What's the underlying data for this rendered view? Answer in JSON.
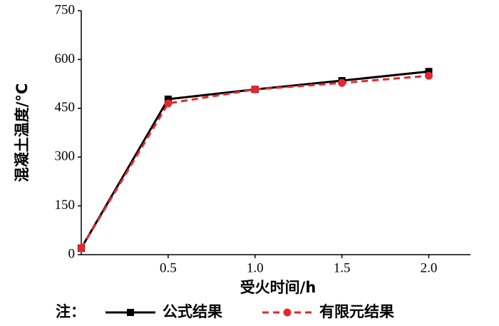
{
  "chart_data": {
    "type": "line",
    "xlabel": "受火时间/h",
    "ylabel": "混凝土温度/°C",
    "note": "注：",
    "x": [
      0,
      0.5,
      1,
      1.5,
      2
    ],
    "series": [
      {
        "name": "公式结果",
        "color": "#000000",
        "marker": "square",
        "dash": false,
        "values": [
          20,
          478,
          508,
          535,
          563
        ]
      },
      {
        "name": "有限元结果",
        "color": "#e8262d",
        "marker": "circle",
        "dash": true,
        "values": [
          20,
          465,
          508,
          528,
          550
        ]
      }
    ],
    "xlim": [
      0,
      2.24
    ],
    "xticks": [
      0.5,
      {
        "value": 1,
        "label": "1.0"
      },
      1.5,
      {
        "value": 2,
        "label": "2.0"
      }
    ],
    "ylim": [
      0,
      750
    ],
    "yticks": [
      0,
      150,
      300,
      450,
      600,
      750
    ]
  }
}
